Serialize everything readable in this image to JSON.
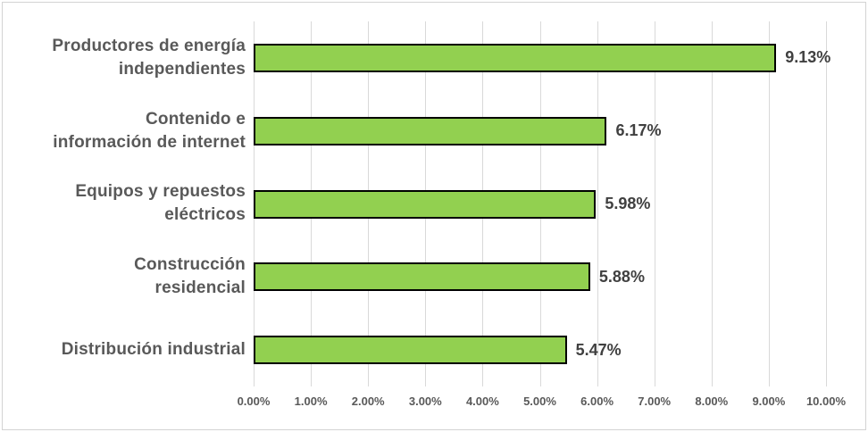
{
  "chart_data": {
    "type": "bar",
    "orientation": "horizontal",
    "title": "",
    "xlabel": "",
    "ylabel": "",
    "xlim": [
      0,
      10
    ],
    "grid": true,
    "legend": false,
    "categories": [
      "Productores de energía independientes",
      "Contenido e información de internet",
      "Equipos y repuestos eléctricos",
      "Construcción residencial",
      "Distribución industrial"
    ],
    "category_label_lines": [
      [
        "Productores de energía",
        "independientes"
      ],
      [
        "Contenido e",
        "información de internet"
      ],
      [
        "Equipos y repuestos",
        "eléctricos"
      ],
      [
        "Construcción",
        "residencial"
      ],
      [
        "Distribución industrial"
      ]
    ],
    "values": [
      9.13,
      6.17,
      5.98,
      5.88,
      5.47
    ],
    "value_labels": [
      "9.13%",
      "6.17%",
      "5.98%",
      "5.88%",
      "5.47%"
    ],
    "x_ticks": [
      "0.00%",
      "1.00%",
      "2.00%",
      "3.00%",
      "4.00%",
      "5.00%",
      "6.00%",
      "7.00%",
      "8.00%",
      "9.00%",
      "10.00%"
    ],
    "colors": {
      "bar_fill": "#92D050",
      "bar_border": "#000000",
      "gridline": "#D9D9D9",
      "category_label": "#595959",
      "value_label": "#404040",
      "tick_label": "#595959",
      "frame_border": "#D4D4D4",
      "background": "#FFFFFF"
    }
  }
}
